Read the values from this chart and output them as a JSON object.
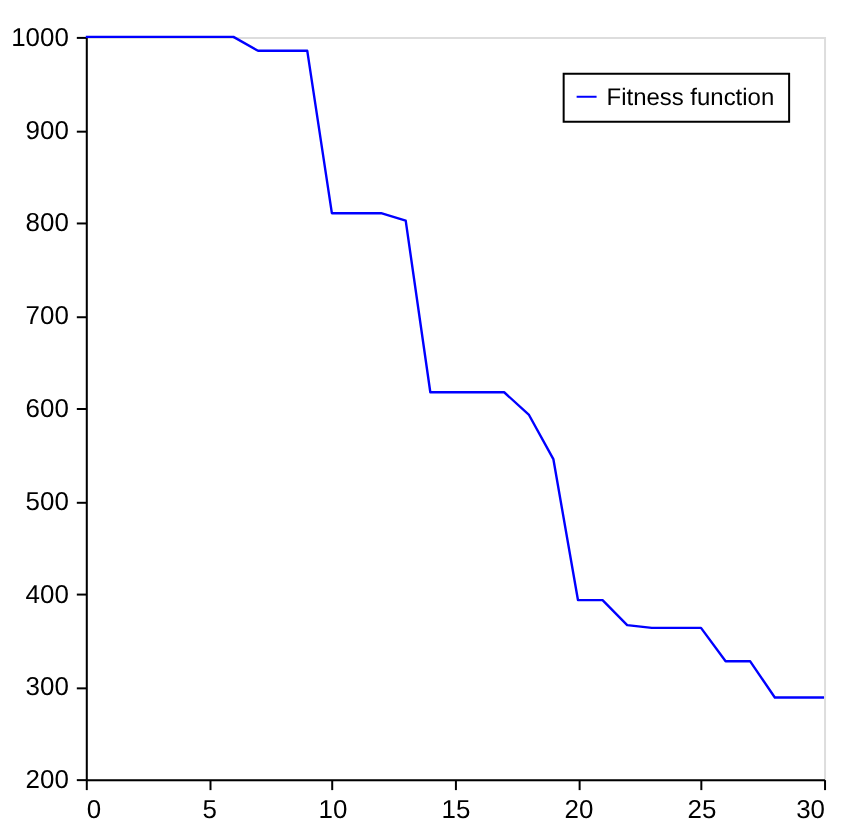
{
  "chart_data": {
    "type": "line",
    "x": [
      0,
      1,
      2,
      3,
      4,
      5,
      6,
      7,
      8,
      9,
      10,
      11,
      12,
      13,
      14,
      15,
      16,
      17,
      18,
      19,
      20,
      21,
      22,
      23,
      24,
      25,
      26,
      27,
      28,
      29,
      30
    ],
    "series": [
      {
        "name": "Fitness function",
        "color": "#0000ff",
        "values": [
          1000,
          1000,
          1000,
          1000,
          1000,
          1000,
          1000,
          985,
          985,
          985,
          810,
          810,
          810,
          802,
          617,
          617,
          617,
          617,
          593,
          545,
          393,
          393,
          366,
          363,
          363,
          363,
          327,
          327,
          288,
          288,
          288
        ]
      }
    ],
    "xlim": [
      0,
      30
    ],
    "xticks": [
      0,
      5,
      10,
      15,
      20,
      25,
      30
    ],
    "ylim": [
      200,
      1000
    ],
    "yticks": [
      200,
      300,
      400,
      500,
      600,
      700,
      800,
      900,
      1000
    ],
    "grid": false,
    "legend": "top right",
    "marker": "none",
    "line_style": "solid"
  }
}
